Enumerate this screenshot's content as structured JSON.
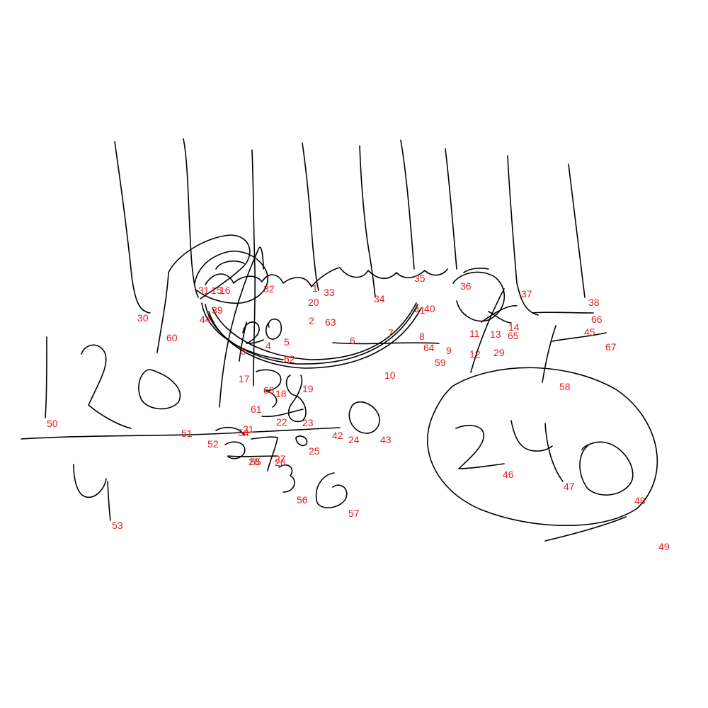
{
  "colors": {
    "ink": "#000000",
    "label": "#e8191d",
    "background": "#ffffff"
  },
  "labels": [
    "1",
    "2",
    "3",
    "4",
    "5",
    "6",
    "7",
    "8",
    "9",
    "10",
    "11",
    "12",
    "13",
    "14",
    "15",
    "16",
    "17",
    "18",
    "19",
    "20",
    "21",
    "22",
    "23",
    "24",
    "25",
    "26",
    "27",
    "28",
    "29",
    "30",
    "31",
    "32",
    "33",
    "34",
    "35",
    "36",
    "37",
    "38",
    "39",
    "40",
    "41",
    "42",
    "43",
    "44",
    "45",
    "46",
    "47",
    "48",
    "49",
    "50",
    "51",
    "52",
    "53",
    "54",
    "55",
    "56",
    "57",
    "58",
    "59",
    "60",
    "61",
    "62",
    "63",
    "64",
    "65",
    "66",
    "67",
    "68"
  ]
}
